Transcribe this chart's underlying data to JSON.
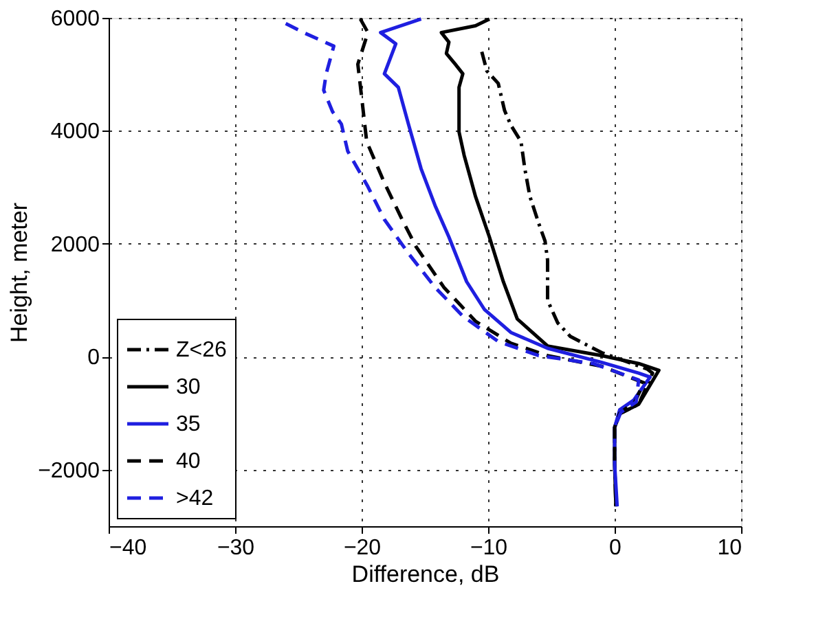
{
  "chart_data": {
    "type": "line",
    "xlabel": "Difference, dB",
    "ylabel": "Height, meter",
    "xlim": [
      -40,
      10
    ],
    "ylim": [
      -3000,
      6000
    ],
    "xticks": [
      -40,
      -30,
      -20,
      -10,
      0,
      10
    ],
    "yticks": [
      -2000,
      0,
      2000,
      4000,
      6000
    ],
    "grid": true,
    "legend": "bottom left",
    "marker": "none",
    "series": [
      {
        "name": "Z<26",
        "color": "#000000",
        "line_style": "dashdot",
        "x": [
          -10.5,
          -10.1,
          -9.2,
          -8.7,
          -8.2,
          -7.4,
          -7.1,
          -6.7,
          -6.0,
          -5.5,
          -5.3,
          -5.3,
          -4.5,
          -3.5,
          -1.0,
          2.6,
          3.0,
          1.9,
          0.4,
          0.0,
          0.0,
          0.1
        ],
        "values": [
          5400,
          5060,
          4840,
          4360,
          4100,
          3810,
          3330,
          2840,
          2360,
          2050,
          1710,
          1000,
          600,
          360,
          70,
          -220,
          -290,
          -840,
          -1010,
          -1250,
          -1900,
          -2650
        ]
      },
      {
        "name": "30",
        "color": "#000000",
        "line_style": "solid",
        "x": [
          -9.9,
          -11.0,
          -13.7,
          -13.1,
          -13.3,
          -12.6,
          -12.0,
          -12.3,
          -12.3,
          -11.9,
          -11.0,
          -9.9,
          -8.8,
          -7.7,
          -5.3,
          -1.0,
          1.9,
          3.5,
          1.9,
          0.4,
          0.0,
          0.0,
          0.1
        ],
        "values": [
          5980,
          5860,
          5740,
          5570,
          5370,
          5180,
          5010,
          4770,
          3980,
          3570,
          2840,
          2120,
          1330,
          670,
          190,
          20,
          -120,
          -240,
          -840,
          -1010,
          -1250,
          -1900,
          -2650
        ]
      },
      {
        "name": "35",
        "color": "#1f1fe0",
        "line_style": "solid",
        "x": [
          -15.3,
          -18.5,
          -17.3,
          -18.2,
          -17.1,
          -16.3,
          -15.3,
          -14.2,
          -13.1,
          -11.7,
          -10.3,
          -8.2,
          -5.3,
          -1.0,
          1.9,
          2.8,
          1.5,
          0.4,
          0.0,
          0.0,
          0.2
        ],
        "values": [
          5980,
          5740,
          5540,
          5010,
          4770,
          4120,
          3330,
          2680,
          2120,
          1330,
          840,
          430,
          150,
          -100,
          -290,
          -360,
          -770,
          -940,
          -1250,
          -1900,
          -2650
        ]
      },
      {
        "name": "40",
        "color": "#000000",
        "line_style": "dashed",
        "x": [
          -20.1,
          -19.5,
          -20.3,
          -20.0,
          -19.6,
          -18.2,
          -16.8,
          -15.7,
          -13.5,
          -11.0,
          -8.2,
          -5.3,
          -1.0,
          2.3,
          1.6,
          0.4,
          0.0,
          0.0
        ],
        "values": [
          5980,
          5740,
          5180,
          4600,
          3810,
          3080,
          2430,
          1950,
          1230,
          630,
          240,
          20,
          -170,
          -460,
          -800,
          -1000,
          -1250,
          -1900
        ]
      },
      {
        "name": ">42",
        "color": "#1f1fe0",
        "line_style": "dashed",
        "x": [
          -26.0,
          -24.6,
          -22.2,
          -22.8,
          -23.0,
          -22.3,
          -21.6,
          -21.1,
          -19.5,
          -18.2,
          -16.3,
          -14.2,
          -12.0,
          -9.2,
          -6.0,
          -1.7,
          1.9,
          1.7,
          0.5,
          0.0
        ],
        "values": [
          5900,
          5740,
          5500,
          5010,
          4720,
          4340,
          4120,
          3640,
          3010,
          2430,
          1830,
          1230,
          720,
          270,
          20,
          -120,
          -410,
          -800,
          -980,
          -1250
        ]
      }
    ]
  }
}
